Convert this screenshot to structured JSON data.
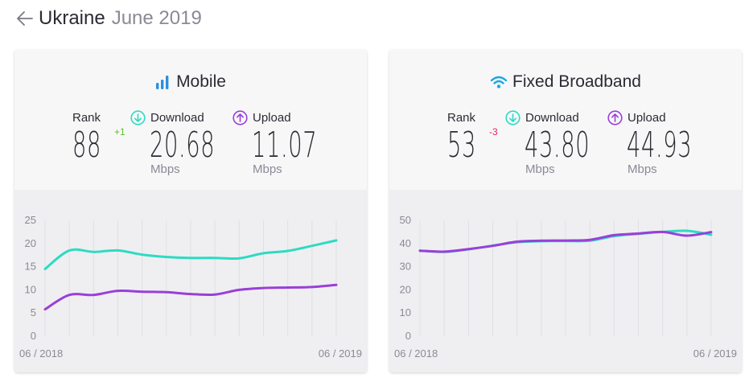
{
  "header": {
    "country": "Ukraine",
    "date": "June 2019"
  },
  "colors": {
    "download": "#2ddbc2",
    "upload": "#9a3fd9",
    "rank_up": "#5fbf2a",
    "rank_down": "#e0245e",
    "mobile_icon": "#2a8fe0",
    "wifi_icon": "#1aa6e4"
  },
  "mobile": {
    "title": "Mobile",
    "rank_label": "Rank",
    "rank": "88",
    "rank_change": "+1",
    "download_label": "Download",
    "download": "20.68",
    "download_unit": "Mbps",
    "upload_label": "Upload",
    "upload": "11.07",
    "upload_unit": "Mbps"
  },
  "fixed": {
    "title": "Fixed Broadband",
    "rank_label": "Rank",
    "rank": "53",
    "rank_change": "-3",
    "download_label": "Download",
    "download": "43.80",
    "download_unit": "Mbps",
    "upload_label": "Upload",
    "upload": "44.93",
    "upload_unit": "Mbps"
  },
  "chart_data": [
    {
      "type": "line",
      "x": [
        "06/2018",
        "07/2018",
        "08/2018",
        "09/2018",
        "10/2018",
        "11/2018",
        "12/2018",
        "01/2019",
        "02/2019",
        "03/2019",
        "04/2019",
        "05/2019",
        "06/2019"
      ],
      "ylim": [
        0,
        25
      ],
      "yticks": [
        0,
        5,
        10,
        15,
        20,
        25
      ],
      "xtick_labels": [
        "06 / 2018",
        "06 / 2019"
      ],
      "series": [
        {
          "key": "download",
          "values": [
            14.5,
            18.5,
            18.2,
            18.5,
            17.6,
            17.1,
            16.9,
            16.9,
            16.8,
            17.9,
            18.4,
            19.5,
            20.68
          ]
        },
        {
          "key": "upload",
          "values": [
            5.8,
            8.9,
            8.9,
            9.8,
            9.6,
            9.5,
            9.1,
            9.0,
            10.0,
            10.4,
            10.5,
            10.6,
            11.07
          ]
        }
      ]
    },
    {
      "type": "line",
      "x": [
        "06/2018",
        "07/2018",
        "08/2018",
        "09/2018",
        "10/2018",
        "11/2018",
        "12/2018",
        "01/2019",
        "02/2019",
        "03/2019",
        "04/2019",
        "05/2019",
        "06/2019"
      ],
      "ylim": [
        0,
        50
      ],
      "yticks": [
        0,
        10,
        20,
        30,
        40,
        50
      ],
      "xtick_labels": [
        "06 / 2018",
        "06 / 2019"
      ],
      "series": [
        {
          "key": "download",
          "values": [
            36.9,
            36.4,
            37.5,
            39.1,
            40.6,
            41.0,
            41.1,
            41.2,
            43.2,
            44.2,
            45.0,
            45.5,
            43.8
          ]
        },
        {
          "key": "upload",
          "values": [
            36.9,
            36.5,
            37.6,
            39.0,
            40.8,
            41.2,
            41.3,
            41.6,
            43.6,
            44.3,
            45.0,
            43.4,
            44.93
          ]
        }
      ]
    }
  ]
}
